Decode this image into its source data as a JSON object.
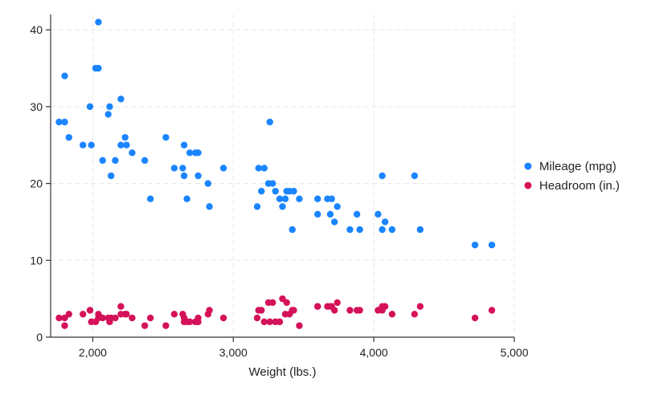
{
  "chart_data": {
    "type": "scatter",
    "title": "",
    "xlabel": "Weight (lbs.)",
    "ylabel": "",
    "xlim": [
      1700,
      5000
    ],
    "ylim": [
      0,
      42
    ],
    "xticks": [
      {
        "value": 2000,
        "label": "2,000"
      },
      {
        "value": 3000,
        "label": "3,000"
      },
      {
        "value": 4000,
        "label": "4,000"
      },
      {
        "value": 5000,
        "label": "5,000"
      }
    ],
    "yticks": [
      {
        "value": 0,
        "label": "0"
      },
      {
        "value": 10,
        "label": "10"
      },
      {
        "value": 20,
        "label": "20"
      },
      {
        "value": 30,
        "label": "30"
      },
      {
        "value": 40,
        "label": "40"
      }
    ],
    "grid": true,
    "legend_position": "right",
    "series": [
      {
        "name": "Mileage (mpg)",
        "color": "#1a85ff",
        "points": [
          [
            1760,
            28
          ],
          [
            1800,
            28
          ],
          [
            1800,
            34
          ],
          [
            1830,
            26
          ],
          [
            1930,
            25
          ],
          [
            1980,
            30
          ],
          [
            1990,
            25
          ],
          [
            2020,
            35
          ],
          [
            2040,
            35
          ],
          [
            2040,
            41
          ],
          [
            2070,
            23
          ],
          [
            2110,
            29
          ],
          [
            2120,
            30
          ],
          [
            2130,
            21
          ],
          [
            2160,
            23
          ],
          [
            2200,
            25
          ],
          [
            2200,
            31
          ],
          [
            2230,
            26
          ],
          [
            2240,
            25
          ],
          [
            2280,
            24
          ],
          [
            2370,
            23
          ],
          [
            2410,
            18
          ],
          [
            2520,
            26
          ],
          [
            2580,
            22
          ],
          [
            2640,
            22
          ],
          [
            2650,
            25
          ],
          [
            2650,
            21
          ],
          [
            2670,
            18
          ],
          [
            2690,
            24
          ],
          [
            2730,
            24
          ],
          [
            2750,
            24
          ],
          [
            2750,
            21
          ],
          [
            2820,
            20
          ],
          [
            2830,
            17
          ],
          [
            2930,
            22
          ],
          [
            3170,
            17
          ],
          [
            3180,
            22
          ],
          [
            3200,
            19
          ],
          [
            3220,
            22
          ],
          [
            3250,
            20
          ],
          [
            3260,
            28
          ],
          [
            3280,
            20
          ],
          [
            3300,
            19
          ],
          [
            3330,
            18
          ],
          [
            3350,
            17
          ],
          [
            3370,
            18
          ],
          [
            3380,
            19
          ],
          [
            3400,
            19
          ],
          [
            3420,
            14
          ],
          [
            3430,
            19
          ],
          [
            3470,
            18
          ],
          [
            3600,
            16
          ],
          [
            3600,
            18
          ],
          [
            3670,
            18
          ],
          [
            3690,
            16
          ],
          [
            3700,
            18
          ],
          [
            3720,
            15
          ],
          [
            3740,
            17
          ],
          [
            3830,
            14
          ],
          [
            3880,
            16
          ],
          [
            3900,
            14
          ],
          [
            4030,
            16
          ],
          [
            4060,
            14
          ],
          [
            4060,
            21
          ],
          [
            4080,
            15
          ],
          [
            4130,
            14
          ],
          [
            4290,
            21
          ],
          [
            4330,
            14
          ],
          [
            4720,
            12
          ],
          [
            4840,
            12
          ]
        ]
      },
      {
        "name": "Headroom (in.)",
        "color": "#d41159",
        "points": [
          [
            1760,
            2.5
          ],
          [
            1800,
            1.5
          ],
          [
            1800,
            2.5
          ],
          [
            1830,
            3
          ],
          [
            1930,
            3
          ],
          [
            1980,
            3.5
          ],
          [
            1990,
            2
          ],
          [
            2020,
            2
          ],
          [
            2040,
            2.5
          ],
          [
            2040,
            3
          ],
          [
            2070,
            2.5
          ],
          [
            2110,
            2.5
          ],
          [
            2120,
            2
          ],
          [
            2130,
            2.5
          ],
          [
            2160,
            2.5
          ],
          [
            2200,
            3
          ],
          [
            2200,
            4
          ],
          [
            2230,
            3
          ],
          [
            2240,
            3
          ],
          [
            2280,
            2.5
          ],
          [
            2370,
            1.5
          ],
          [
            2410,
            2.5
          ],
          [
            2520,
            1.5
          ],
          [
            2580,
            3
          ],
          [
            2640,
            3
          ],
          [
            2650,
            2.5
          ],
          [
            2650,
            2
          ],
          [
            2670,
            2
          ],
          [
            2690,
            2
          ],
          [
            2730,
            2
          ],
          [
            2750,
            2.5
          ],
          [
            2750,
            2
          ],
          [
            2820,
            3
          ],
          [
            2830,
            3.5
          ],
          [
            2930,
            2.5
          ],
          [
            3170,
            2.5
          ],
          [
            3180,
            3.5
          ],
          [
            3200,
            3.5
          ],
          [
            3220,
            2
          ],
          [
            3250,
            4.5
          ],
          [
            3260,
            2
          ],
          [
            3280,
            4.5
          ],
          [
            3300,
            2
          ],
          [
            3330,
            2
          ],
          [
            3350,
            5
          ],
          [
            3370,
            3
          ],
          [
            3380,
            4.5
          ],
          [
            3400,
            3
          ],
          [
            3420,
            3.5
          ],
          [
            3430,
            3.5
          ],
          [
            3470,
            1.5
          ],
          [
            3600,
            4
          ],
          [
            3600,
            4
          ],
          [
            3670,
            4
          ],
          [
            3690,
            4
          ],
          [
            3700,
            4
          ],
          [
            3720,
            3.5
          ],
          [
            3740,
            4.5
          ],
          [
            3830,
            3.5
          ],
          [
            3880,
            3.5
          ],
          [
            3900,
            3.5
          ],
          [
            4030,
            3.5
          ],
          [
            4060,
            3.5
          ],
          [
            4060,
            4
          ],
          [
            4080,
            4
          ],
          [
            4130,
            3
          ],
          [
            4290,
            3
          ],
          [
            4330,
            4
          ],
          [
            4720,
            2.5
          ],
          [
            4840,
            3.5
          ]
        ]
      }
    ]
  }
}
